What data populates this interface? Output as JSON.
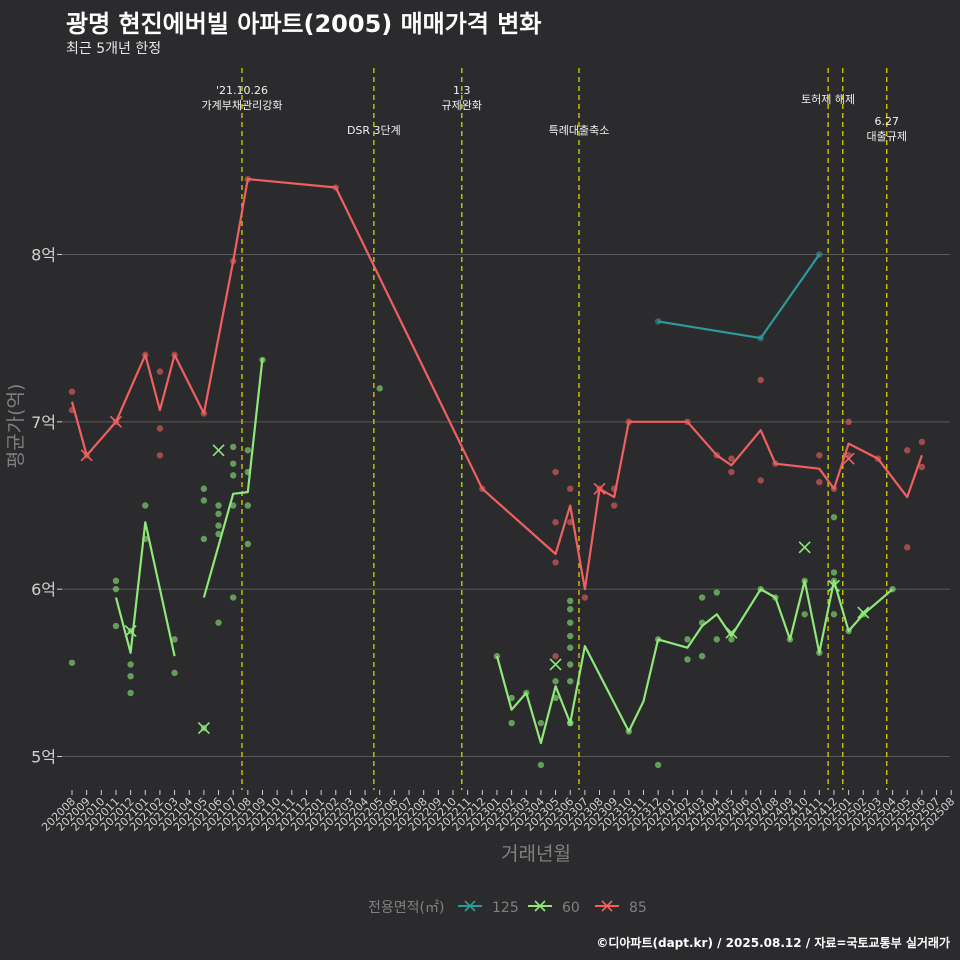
{
  "title": "광명 현진에버빌 아파트(2005) 매매가격 변화",
  "subtitle": "최근 5개년 한정",
  "caption": "©디아파트(dapt.kr) / 2025.08.12 / 자료=국토교통부 실거래가",
  "colors": {
    "background": "#2b2b2d",
    "grid": "#5a5a5e",
    "event_line": "#d4d400",
    "axis_text": "#d0d0d0",
    "axis_title": "#808080"
  },
  "chart_data": {
    "type": "line",
    "xlabel": "거래년월",
    "ylabel": "평균가(억)",
    "x_categories": [
      "202008",
      "202009",
      "202010",
      "202011",
      "202012",
      "202101",
      "202102",
      "202103",
      "202104",
      "202105",
      "202106",
      "202107",
      "202108",
      "202109",
      "202110",
      "202111",
      "202112",
      "202201",
      "202202",
      "202203",
      "202204",
      "202205",
      "202206",
      "202207",
      "202208",
      "202209",
      "202210",
      "202211",
      "202212",
      "202301",
      "202302",
      "202303",
      "202304",
      "202305",
      "202306",
      "202307",
      "202308",
      "202309",
      "202310",
      "202311",
      "202312",
      "202401",
      "202402",
      "202403",
      "202404",
      "202405",
      "202406",
      "202407",
      "202408",
      "202409",
      "202410",
      "202411",
      "202412",
      "202501",
      "202502",
      "202503",
      "202504",
      "202505",
      "202506",
      "202507",
      "202508"
    ],
    "ylim": [
      4.8,
      9.15
    ],
    "y_ticks": [
      5,
      6,
      7,
      8
    ],
    "y_tick_labels": [
      "5억",
      "6억",
      "7억",
      "8억"
    ],
    "grid": true,
    "legend": {
      "position": "bottom",
      "title": "전용면적(㎡)",
      "items": [
        {
          "label": "125",
          "color": "#2e9a9a"
        },
        {
          "label": "60",
          "color": "#8ee87a"
        },
        {
          "label": "85",
          "color": "#f06060"
        }
      ]
    },
    "events": [
      {
        "x": 11.6,
        "label": "'21.10.26\n가계부채관리강화",
        "row": 0
      },
      {
        "x": 20.6,
        "label": "DSR 3단계",
        "row": 2
      },
      {
        "x": 26.6,
        "label": "1.3\n규제완화",
        "row": 0
      },
      {
        "x": 34.6,
        "label": "특례대출축소",
        "row": 2
      },
      {
        "x": 51.6,
        "label": "토허제 해제",
        "row": 1
      },
      {
        "x": 52.6,
        "label": "",
        "row": 1
      },
      {
        "x": 55.6,
        "label": "6.27\n대출규제",
        "row": 3
      }
    ],
    "series": [
      {
        "name": "125",
        "color": "#2e9a9a",
        "line": [
          [
            40,
            7.6
          ],
          [
            47,
            7.5
          ],
          [
            51,
            8.0
          ]
        ],
        "points": [
          [
            40,
            7.6
          ],
          [
            47,
            7.5
          ],
          [
            51,
            8.0
          ]
        ],
        "mean_marks": []
      },
      {
        "name": "60",
        "color": "#8ee87a",
        "line_segments": [
          [
            [
              3,
              5.95
            ],
            [
              4,
              5.62
            ],
            [
              5,
              6.4
            ],
            [
              7,
              5.6
            ]
          ],
          [
            [
              9,
              5.95
            ],
            [
              11,
              6.57
            ],
            [
              12,
              6.58
            ],
            [
              13,
              7.38
            ]
          ],
          [
            [
              29,
              5.6
            ],
            [
              30,
              5.28
            ],
            [
              31,
              5.38
            ],
            [
              32,
              5.08
            ],
            [
              33,
              5.42
            ],
            [
              34,
              5.2
            ],
            [
              35,
              5.66
            ],
            [
              38,
              5.15
            ],
            [
              39,
              5.33
            ],
            [
              40,
              5.7
            ],
            [
              42,
              5.65
            ],
            [
              43,
              5.78
            ],
            [
              44,
              5.85
            ],
            [
              45,
              5.72
            ],
            [
              47,
              6.0
            ],
            [
              48,
              5.95
            ],
            [
              49,
              5.7
            ],
            [
              50,
              6.05
            ],
            [
              51,
              5.62
            ],
            [
              52,
              6.05
            ],
            [
              53,
              5.75
            ],
            [
              54,
              5.85
            ],
            [
              56,
              6.0
            ]
          ]
        ],
        "points": [
          [
            0,
            5.56
          ],
          [
            3,
            6.05
          ],
          [
            3,
            6.0
          ],
          [
            3,
            5.78
          ],
          [
            4,
            5.75
          ],
          [
            4,
            5.55
          ],
          [
            4,
            5.48
          ],
          [
            4,
            5.38
          ],
          [
            5,
            6.5
          ],
          [
            5,
            6.3
          ],
          [
            7,
            5.7
          ],
          [
            7,
            5.5
          ],
          [
            9,
            6.6
          ],
          [
            9,
            6.53
          ],
          [
            9,
            6.3
          ],
          [
            9,
            5.17
          ],
          [
            10,
            6.5
          ],
          [
            10,
            6.45
          ],
          [
            10,
            6.38
          ],
          [
            10,
            6.33
          ],
          [
            10,
            5.8
          ],
          [
            11,
            6.85
          ],
          [
            11,
            6.75
          ],
          [
            11,
            6.68
          ],
          [
            11,
            6.5
          ],
          [
            11,
            5.95
          ],
          [
            12,
            6.83
          ],
          [
            12,
            6.7
          ],
          [
            12,
            6.5
          ],
          [
            12,
            6.27
          ],
          [
            13,
            7.37
          ],
          [
            21,
            7.2
          ],
          [
            29,
            5.6
          ],
          [
            30,
            5.35
          ],
          [
            30,
            5.2
          ],
          [
            31,
            5.38
          ],
          [
            32,
            5.2
          ],
          [
            32,
            4.95
          ],
          [
            33,
            5.45
          ],
          [
            33,
            5.35
          ],
          [
            34,
            5.2
          ],
          [
            34,
            5.93
          ],
          [
            34,
            5.88
          ],
          [
            34,
            5.8
          ],
          [
            34,
            5.72
          ],
          [
            34,
            5.65
          ],
          [
            34,
            5.55
          ],
          [
            34,
            5.45
          ],
          [
            34,
            5.2
          ],
          [
            38,
            5.15
          ],
          [
            40,
            5.7
          ],
          [
            40,
            4.95
          ],
          [
            42,
            5.7
          ],
          [
            42,
            5.58
          ],
          [
            43,
            5.95
          ],
          [
            43,
            5.8
          ],
          [
            43,
            5.6
          ],
          [
            44,
            5.98
          ],
          [
            44,
            5.7
          ],
          [
            45,
            5.7
          ],
          [
            47,
            6.0
          ],
          [
            48,
            5.95
          ],
          [
            49,
            5.7
          ],
          [
            50,
            6.05
          ],
          [
            50,
            5.85
          ],
          [
            51,
            5.62
          ],
          [
            52,
            6.43
          ],
          [
            52,
            6.1
          ],
          [
            52,
            6.05
          ],
          [
            52,
            5.85
          ],
          [
            53,
            5.75
          ],
          [
            54,
            5.85
          ],
          [
            56,
            6.0
          ]
        ],
        "mean_marks": [
          [
            4,
            5.75
          ],
          [
            9,
            5.17
          ],
          [
            10,
            6.83
          ],
          [
            33,
            5.55
          ],
          [
            45,
            5.74
          ],
          [
            50,
            6.25
          ],
          [
            52,
            6.02
          ],
          [
            54,
            5.86
          ]
        ]
      },
      {
        "name": "85",
        "color": "#f06060",
        "line": [
          [
            0,
            7.12
          ],
          [
            1,
            6.8
          ],
          [
            3,
            7.0
          ],
          [
            5,
            7.4
          ],
          [
            6,
            7.07
          ],
          [
            7,
            7.4
          ],
          [
            9,
            7.05
          ],
          [
            11,
            7.96
          ],
          [
            12,
            8.45
          ],
          [
            18,
            8.4
          ],
          [
            28,
            6.6
          ],
          [
            33,
            6.21
          ],
          [
            34,
            6.5
          ],
          [
            35,
            6.0
          ],
          [
            36,
            6.6
          ],
          [
            37,
            6.55
          ],
          [
            38,
            7.0
          ],
          [
            42,
            7.0
          ],
          [
            44,
            6.8
          ],
          [
            45,
            6.74
          ],
          [
            47,
            6.95
          ],
          [
            48,
            6.75
          ],
          [
            51,
            6.72
          ],
          [
            52,
            6.6
          ],
          [
            53,
            6.87
          ],
          [
            55,
            6.78
          ],
          [
            57,
            6.55
          ],
          [
            58,
            6.8
          ]
        ],
        "points": [
          [
            0,
            7.18
          ],
          [
            0,
            7.07
          ],
          [
            1,
            6.8
          ],
          [
            3,
            7.0
          ],
          [
            5,
            7.4
          ],
          [
            6,
            7.3
          ],
          [
            6,
            6.96
          ],
          [
            6,
            6.8
          ],
          [
            7,
            7.4
          ],
          [
            9,
            7.05
          ],
          [
            11,
            7.96
          ],
          [
            12,
            8.45
          ],
          [
            18,
            8.4
          ],
          [
            28,
            6.6
          ],
          [
            33,
            6.7
          ],
          [
            33,
            6.4
          ],
          [
            33,
            6.16
          ],
          [
            33,
            5.6
          ],
          [
            34,
            6.6
          ],
          [
            34,
            6.4
          ],
          [
            35,
            5.95
          ],
          [
            36,
            6.6
          ],
          [
            37,
            6.6
          ],
          [
            37,
            6.5
          ],
          [
            38,
            7.0
          ],
          [
            42,
            7.0
          ],
          [
            44,
            6.8
          ],
          [
            45,
            6.78
          ],
          [
            45,
            6.7
          ],
          [
            47,
            7.25
          ],
          [
            47,
            6.65
          ],
          [
            48,
            6.75
          ],
          [
            51,
            6.8
          ],
          [
            51,
            6.64
          ],
          [
            52,
            6.6
          ],
          [
            53,
            7.0
          ],
          [
            53,
            6.8
          ],
          [
            55,
            6.78
          ],
          [
            57,
            6.83
          ],
          [
            57,
            6.25
          ],
          [
            58,
            6.88
          ],
          [
            58,
            6.73
          ]
        ],
        "mean_marks": [
          [
            1,
            6.8
          ],
          [
            3,
            7.0
          ],
          [
            36,
            6.6
          ],
          [
            53,
            6.78
          ]
        ]
      }
    ]
  }
}
